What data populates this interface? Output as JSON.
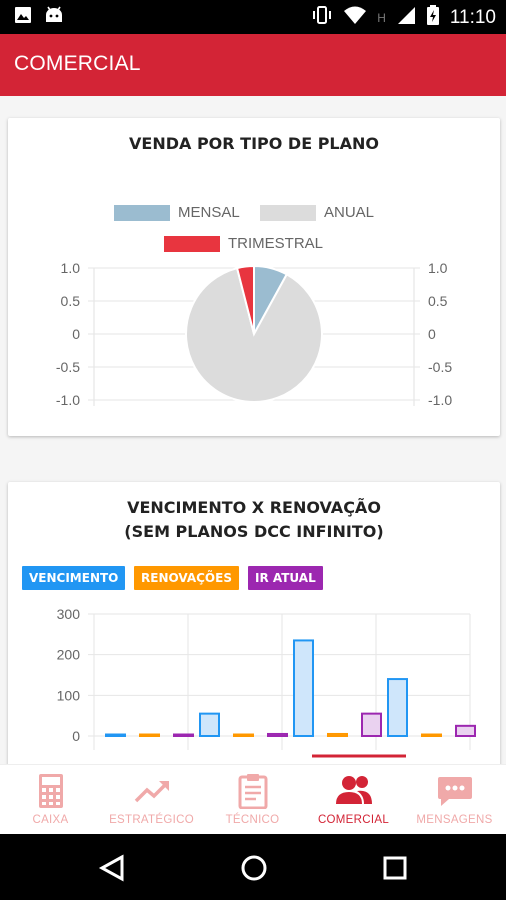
{
  "status_bar": {
    "time": "11:10",
    "left_icons": [
      "image-icon",
      "android-icon"
    ],
    "right_icons": [
      "vibrate-icon",
      "wifi-icon",
      "h-network-icon",
      "signal-icon",
      "battery-charging-icon"
    ],
    "network_label": "H"
  },
  "app_bar": {
    "title": "COMERCIAL",
    "color": "#d32436"
  },
  "card_plan": {
    "title": "VENDA POR TIPO DE PLANO",
    "legend": [
      {
        "label": "MENSAL",
        "color": "#9bbcd0"
      },
      {
        "label": "ANUAL",
        "color": "#dcdcdc"
      },
      {
        "label": "TRIMESTRAL",
        "color": "#e8353f"
      }
    ],
    "y_ticks": [
      "1.0",
      "0.5",
      "0",
      "-0.5",
      "-1.0"
    ]
  },
  "chart_data": [
    {
      "type": "pie",
      "title": "VENDA POR TIPO DE PLANO",
      "labels": [
        "MENSAL",
        "ANUAL",
        "TRIMESTRAL"
      ],
      "values": [
        8,
        88,
        4
      ],
      "colors": [
        "#9bbcd0",
        "#dcdcdc",
        "#e8353f"
      ],
      "y_ticks": [
        1.0,
        0.5,
        0,
        -0.5,
        -1.0
      ],
      "legend_position": "top"
    },
    {
      "type": "bar",
      "title": "VENCIMENTO X RENOVAÇÃO (SEM PLANOS DCC INFINITO)",
      "series": [
        {
          "name": "VENCIMENTO",
          "values": [
            0,
            55,
            235,
            140
          ],
          "color": "#2196f3"
        },
        {
          "name": "RENOVAÇÕES",
          "values": [
            0,
            0,
            5,
            0
          ],
          "color": "#ff9800"
        },
        {
          "name": "IR ATUAL",
          "values": [
            0,
            5,
            55,
            25
          ],
          "color": "#9c27b0"
        }
      ],
      "ylim": [
        0,
        300
      ],
      "y_ticks": [
        0,
        100,
        200,
        300
      ]
    }
  ],
  "card_renewal": {
    "title_line1": "VENCIMENTO X RENOVAÇÃO",
    "title_line2": "(SEM PLANOS DCC INFINITO)",
    "tags": [
      {
        "label": "VENCIMENTO",
        "color": "#2196f3"
      },
      {
        "label": "RENOVAÇÕES",
        "color": "#ff9800"
      },
      {
        "label": "IR ATUAL",
        "color": "#9c27b0"
      }
    ],
    "y_ticks": [
      "300",
      "200",
      "100",
      "0"
    ]
  },
  "bottom_nav": {
    "items": [
      {
        "label": "CAIXA",
        "icon": "calculator-icon",
        "active": false
      },
      {
        "label": "ESTRATÉGICO",
        "icon": "trending-up-icon",
        "active": false
      },
      {
        "label": "TÉCNICO",
        "icon": "clipboard-icon",
        "active": false
      },
      {
        "label": "COMERCIAL",
        "icon": "users-icon",
        "active": true
      },
      {
        "label": "MENSAGENS",
        "icon": "chat-icon",
        "active": false
      }
    ]
  },
  "system_nav": {
    "icons": [
      "back-icon",
      "home-icon",
      "recents-icon"
    ]
  }
}
